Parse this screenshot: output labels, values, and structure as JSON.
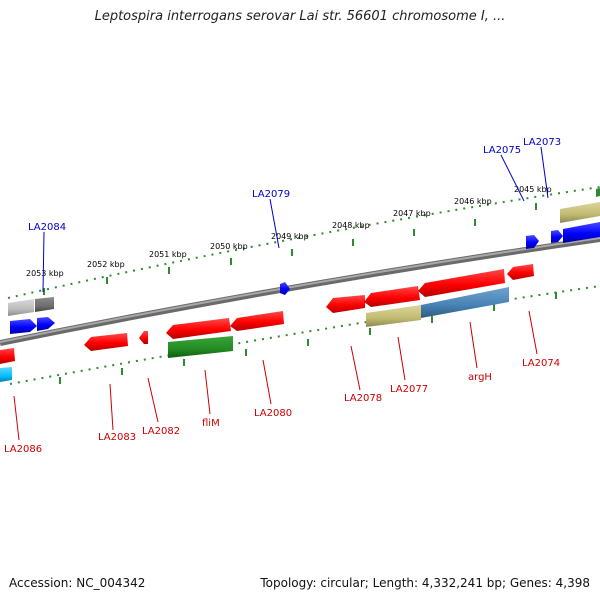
{
  "header": {
    "title": "Leptospira interrogans serovar Lai str. 56601 chromosome I, ..."
  },
  "footer": {
    "accession": "Accession: NC_004342",
    "topology": "Topology: circular; Length: 4,332,241 bp; Genes: 4,398"
  },
  "colors": {
    "background": "#ffffff",
    "backbone": "#808080",
    "gene_default": "#ff0000",
    "gene_selected_blue": "#0000ff",
    "gene_green": "#228b22",
    "gene_olive": "#c8c07a",
    "gene_steelblue": "#4682b4",
    "gene_cyan": "#00bfff",
    "gene_gray": "#bcbcbc",
    "gene_darkgray": "#6e6e6e",
    "label_red": "#cc0000",
    "label_blue": "#0000cc",
    "scale_green": "#2e8b2e"
  },
  "scale_labels": [
    "2053 kbp",
    "2052 kbp",
    "2051 kbp",
    "2050 kbp",
    "2049 kbp",
    "2048 kbp",
    "2047 kbp",
    "2046 kbp",
    "2045 kbp"
  ],
  "gene_labels": [
    {
      "id": "LA2084",
      "color": "blue"
    },
    {
      "id": "LA2079",
      "color": "blue"
    },
    {
      "id": "LA2075",
      "color": "blue"
    },
    {
      "id": "LA2073",
      "color": "blue"
    },
    {
      "id": "LA2086",
      "color": "red"
    },
    {
      "id": "LA2083",
      "color": "red"
    },
    {
      "id": "LA2082",
      "color": "red"
    },
    {
      "id": "fliM",
      "color": "red"
    },
    {
      "id": "LA2080",
      "color": "red"
    },
    {
      "id": "LA2078",
      "color": "red"
    },
    {
      "id": "LA2077",
      "color": "red"
    },
    {
      "id": "argH",
      "color": "red"
    },
    {
      "id": "LA2074",
      "color": "red"
    }
  ]
}
